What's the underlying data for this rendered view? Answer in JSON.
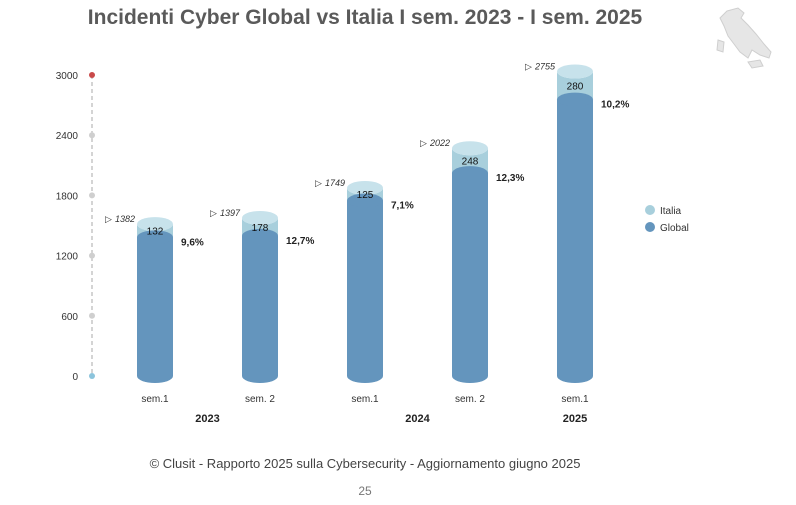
{
  "chart_data": {
    "type": "bar",
    "title": "Incidenti Cyber Global vs Italia I sem. 2023 - I sem. 2025",
    "categories": [
      "sem.1",
      "sem. 2",
      "sem.1",
      "sem. 2",
      "sem.1"
    ],
    "years": [
      {
        "label": "2023",
        "span": [
          0,
          1
        ]
      },
      {
        "label": "2024",
        "span": [
          2,
          3
        ]
      },
      {
        "label": "2025",
        "span": [
          4,
          4
        ]
      }
    ],
    "series": [
      {
        "name": "Global",
        "values": [
          1382,
          1397,
          1749,
          2022,
          2755
        ],
        "color": "#6495bd"
      },
      {
        "name": "Italia",
        "values": [
          132,
          178,
          125,
          248,
          280
        ],
        "color": "#a8cfdc"
      }
    ],
    "totals": [
      "1382",
      "1397",
      "1749",
      "2022",
      "2755"
    ],
    "italia_labels": [
      "132",
      "178",
      "125",
      "248",
      "280"
    ],
    "italia_share": [
      "9,6%",
      "12,7%",
      "7,1%",
      "12,3%",
      "10,2%"
    ],
    "ylim": [
      0,
      3000
    ],
    "yticks": [
      "0",
      "600",
      "1200",
      "1800",
      "2400",
      "3000"
    ],
    "legend": [
      "Italia",
      "Global"
    ],
    "legend_position": "right"
  },
  "footer": "© Clusit - Rapporto 2025 sulla Cybersecurity - Aggiornamento giugno 2025",
  "page_number": "25",
  "colors": {
    "global": "#6495bd",
    "italia": "#a8cfdc",
    "axis": "#aaaaaa",
    "title": "#5a5a5a"
  }
}
